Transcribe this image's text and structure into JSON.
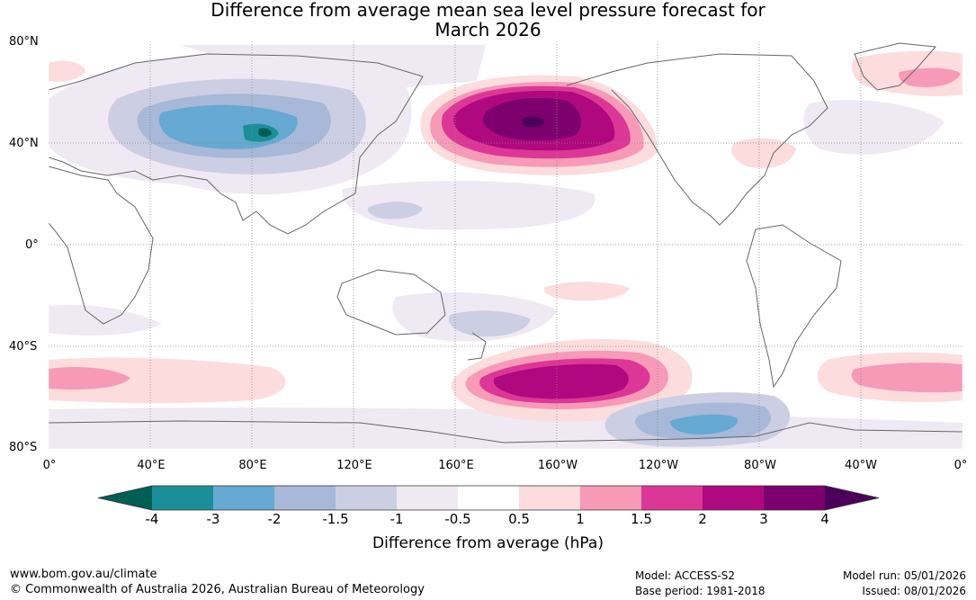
{
  "title": {
    "line1": "Difference from average mean sea level pressure forecast for",
    "line2": "March 2026"
  },
  "map": {
    "lat_labels": [
      "80°N",
      "40°N",
      "0°",
      "40°S",
      "80°S"
    ],
    "lon_labels": [
      "0°",
      "40°E",
      "80°E",
      "120°E",
      "160°E",
      "160°W",
      "120°W",
      "80°W",
      "40°W",
      "0°"
    ],
    "anomaly_features": [
      {
        "name": "north-pacific-high",
        "level": 4
      },
      {
        "name": "southern-ocean-high",
        "level": 3
      },
      {
        "name": "central-asia-low",
        "level": -3
      },
      {
        "name": "south-atlantic-high",
        "level": 1.5
      },
      {
        "name": "amundsen-sea-low",
        "level": -3
      },
      {
        "name": "greenland-high",
        "level": 1.5
      }
    ]
  },
  "colorbar": {
    "labels": [
      "-4",
      "-3",
      "-2",
      "-1.5",
      "-1",
      "-0.5",
      "0.5",
      "1",
      "1.5",
      "2",
      "3",
      "4"
    ],
    "colors": [
      "#005f55",
      "#1b8f98",
      "#66a9d2",
      "#a7b8d8",
      "#cccfe4",
      "#efe9f3",
      "#ffffff",
      "#fcdcdc",
      "#f69ab8",
      "#dc3797",
      "#b0097f",
      "#7c006e",
      "#4c005c"
    ],
    "title": "Difference from average (hPa)"
  },
  "footer": {
    "website": "www.bom.gov.au/climate",
    "copyright": "© Commonwealth of Australia 2026, Australian Bureau of Meteorology",
    "model": "Model: ACCESS-S2",
    "base_period": "Base period: 1981-2018",
    "model_run": "Model run: 05/01/2026",
    "issued": "Issued: 08/01/2026"
  }
}
